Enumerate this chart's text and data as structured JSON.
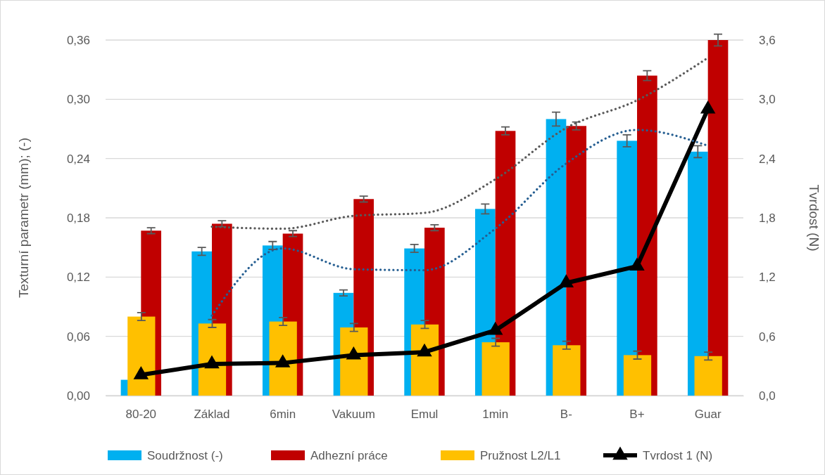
{
  "chart_data": {
    "type": "bar",
    "ylabel": "Texturní parametr (mm); (-)",
    "y2label": "Tvrdost (N)",
    "categories": [
      "80-20",
      "Základ",
      "6min",
      "Vakuum",
      "Emul",
      "1min",
      "B-",
      "B+",
      "Guar"
    ],
    "series": [
      {
        "name": "Soudržnost (-)",
        "color": "#00b0f0",
        "values": [
          0.016,
          0.146,
          0.152,
          0.104,
          0.149,
          0.189,
          0.28,
          0.258,
          0.247
        ],
        "errors": [
          null,
          0.004,
          0.004,
          0.003,
          0.004,
          0.005,
          0.007,
          0.006,
          0.006
        ]
      },
      {
        "name": "Adhezní práce",
        "color": "#c00000",
        "values": [
          0.167,
          0.174,
          0.164,
          0.199,
          0.17,
          0.268,
          0.273,
          0.324,
          0.36
        ],
        "errors": [
          0.003,
          0.003,
          0.003,
          0.003,
          0.003,
          0.004,
          0.004,
          0.005,
          0.006
        ]
      },
      {
        "name": "Pružnost L2/L1",
        "axis": "y2",
        "color": "#ffc000",
        "values": [
          0.8,
          0.73,
          0.75,
          0.69,
          0.72,
          0.54,
          0.51,
          0.41,
          0.4
        ],
        "errors": [
          0.04,
          0.04,
          0.04,
          0.04,
          0.04,
          0.04,
          0.04,
          0.04,
          0.04
        ]
      },
      {
        "name": "Tvrdost 1 (N)",
        "type": "line",
        "axis": "y2",
        "color": "#000000",
        "marker": "triangle",
        "line_style": "solid",
        "values": [
          0.21,
          0.32,
          0.33,
          0.41,
          0.44,
          0.66,
          1.14,
          1.31,
          2.9
        ]
      },
      {
        "type": "line",
        "color": "#255e91",
        "line_style": "dotted",
        "marker": "none",
        "values": [
          null,
          0.081,
          0.149,
          0.128,
          0.127,
          0.169,
          0.235,
          0.269,
          0.253
        ]
      },
      {
        "type": "line",
        "color": "#595959",
        "line_style": "dotted",
        "marker": "none",
        "values": [
          null,
          0.171,
          0.169,
          0.182,
          0.185,
          0.219,
          0.271,
          0.299,
          0.342
        ]
      }
    ],
    "ylim": [
      0,
      0.36
    ],
    "yticks": [
      {
        "value": 0,
        "label": "0,00"
      },
      {
        "value": 0.06,
        "label": "0,06"
      },
      {
        "value": 0.12,
        "label": "0,12"
      },
      {
        "value": 0.18,
        "label": "0,18"
      },
      {
        "value": 0.24,
        "label": "0,24"
      },
      {
        "value": 0.3,
        "label": "0,30"
      },
      {
        "value": 0.36,
        "label": "0,36"
      }
    ],
    "y2lim": [
      0,
      3.6
    ],
    "y2ticks": [
      {
        "value": 0,
        "label": "0,0"
      },
      {
        "value": 0.6,
        "label": "0,6"
      },
      {
        "value": 1.2,
        "label": "1,2"
      },
      {
        "value": 1.8,
        "label": "1,8"
      },
      {
        "value": 2.4,
        "label": "2,4"
      },
      {
        "value": 3.0,
        "label": "3,0"
      },
      {
        "value": 3.6,
        "label": "3,6"
      }
    ],
    "grid": "y",
    "legend": "bottom"
  }
}
